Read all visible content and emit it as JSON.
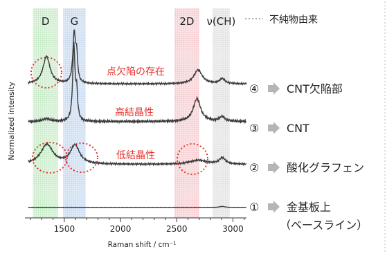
{
  "chart_data": {
    "type": "line",
    "xlabel": "Raman shift / cm⁻¹",
    "ylabel": "Normalized intensity",
    "xlim": [
      1150,
      3120
    ],
    "x_ticks": [
      1500,
      2000,
      2500,
      3000
    ],
    "bands": [
      {
        "label": "D",
        "range": [
          1220,
          1445
        ],
        "color": "#bfe6bf",
        "label_color": "#222222"
      },
      {
        "label": "G",
        "range": [
          1490,
          1690
        ],
        "color": "#bcd3ee",
        "label_color": "#222222"
      },
      {
        "label": "2D",
        "range": [
          2480,
          2700
        ],
        "color": "#f5c3c7",
        "label_color": "#222222"
      },
      {
        "label": "ν(CH)",
        "range": [
          2820,
          2970
        ],
        "color": "#dddddd",
        "label_color": "#222222"
      }
    ],
    "impurity_legend": "不純物由来",
    "series": [
      {
        "name": "CNT欠陥部",
        "marker": "④",
        "peaks": [
          [
            1342,
            0.55,
            38
          ],
          [
            1588,
            1.0,
            14
          ],
          [
            1610,
            0.5,
            10
          ],
          [
            2690,
            0.28,
            45
          ],
          [
            2905,
            0.1,
            30
          ]
        ],
        "baseline": 0.05
      },
      {
        "name": "CNT",
        "marker": "③",
        "peaks": [
          [
            1342,
            0.04,
            35
          ],
          [
            1585,
            1.0,
            12
          ],
          [
            1610,
            0.35,
            10
          ],
          [
            2680,
            0.3,
            40
          ],
          [
            2905,
            0.06,
            30
          ]
        ],
        "baseline": 0.02
      },
      {
        "name": "酸化グラフェン",
        "marker": "②",
        "peaks": [
          [
            1345,
            0.38,
            65
          ],
          [
            1595,
            0.36,
            50
          ],
          [
            2690,
            0.08,
            90
          ],
          [
            2905,
            0.12,
            35
          ]
        ],
        "baseline": 0.03
      },
      {
        "name": "金基板上",
        "subtitle": "（ベースライン）",
        "marker": "①",
        "peaks": [
          [
            2905,
            0.13,
            30
          ]
        ],
        "baseline": 0.0
      }
    ],
    "annotations": [
      "点欠陥の存在",
      "高結晶性",
      "低結晶性"
    ],
    "annotation_color": "#e8312a"
  }
}
